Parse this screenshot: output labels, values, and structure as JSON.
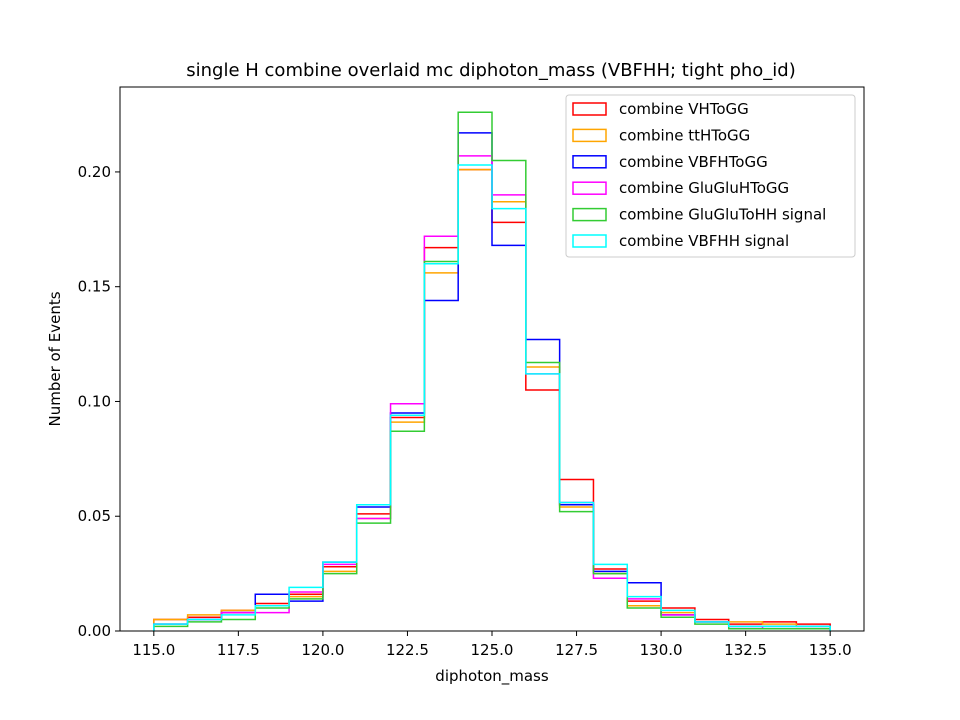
{
  "chart_data": {
    "type": "step-histogram",
    "title": "single H combine overlaid mc diphoton_mass (VBFHH; tight pho_id)",
    "xlabel": "diphoton_mass",
    "ylabel": "Number of Events",
    "xlim": [
      114,
      136
    ],
    "ylim": [
      0,
      0.237
    ],
    "bin_edges": [
      115,
      116,
      117,
      118,
      119,
      120,
      121,
      122,
      123,
      124,
      125,
      126,
      127,
      128,
      129,
      130,
      131,
      132,
      133,
      134,
      135
    ],
    "xticks": [
      {
        "value": 115,
        "label": "115.0"
      },
      {
        "value": 117.5,
        "label": "117.5"
      },
      {
        "value": 120,
        "label": "120.0"
      },
      {
        "value": 122.5,
        "label": "122.5"
      },
      {
        "value": 125,
        "label": "125.0"
      },
      {
        "value": 127.5,
        "label": "127.5"
      },
      {
        "value": 130,
        "label": "130.0"
      },
      {
        "value": 132.5,
        "label": "132.5"
      },
      {
        "value": 135,
        "label": "135.0"
      }
    ],
    "yticks": [
      {
        "value": 0,
        "label": "0.00"
      },
      {
        "value": 0.05,
        "label": "0.05"
      },
      {
        "value": 0.1,
        "label": "0.10"
      },
      {
        "value": 0.15,
        "label": "0.15"
      },
      {
        "value": 0.2,
        "label": "0.20"
      }
    ],
    "grid": false,
    "legend_position": "top-right",
    "series": [
      {
        "name": "combine VHToGG",
        "color": "#ff0000",
        "values": [
          0.005,
          0.006,
          0.009,
          0.012,
          0.016,
          0.028,
          0.051,
          0.093,
          0.167,
          0.201,
          0.178,
          0.105,
          0.066,
          0.027,
          0.013,
          0.01,
          0.005,
          0.003,
          0.004,
          0.003
        ]
      },
      {
        "name": "combine ttHToGG",
        "color": "#ffa500",
        "values": [
          0.005,
          0.007,
          0.009,
          0.011,
          0.015,
          0.026,
          0.049,
          0.091,
          0.156,
          0.201,
          0.187,
          0.115,
          0.054,
          0.025,
          0.011,
          0.008,
          0.004,
          0.004,
          0.003,
          0.002
        ]
      },
      {
        "name": "combine VBFHToGG",
        "color": "#0000ff",
        "values": [
          0.003,
          0.005,
          0.008,
          0.016,
          0.013,
          0.03,
          0.054,
          0.095,
          0.144,
          0.217,
          0.168,
          0.127,
          0.055,
          0.026,
          0.021,
          0.007,
          0.004,
          0.002,
          0.002,
          0.002
        ]
      },
      {
        "name": "combine GluGluHToGG",
        "color": "#ff00ff",
        "values": [
          0.003,
          0.005,
          0.008,
          0.008,
          0.017,
          0.029,
          0.049,
          0.099,
          0.172,
          0.207,
          0.19,
          0.112,
          0.056,
          0.023,
          0.014,
          0.007,
          0.004,
          0.002,
          0.001,
          0.001
        ]
      },
      {
        "name": "combine GluGluToHH signal",
        "color": "#33cc33",
        "values": [
          0.002,
          0.004,
          0.005,
          0.01,
          0.014,
          0.025,
          0.047,
          0.087,
          0.161,
          0.226,
          0.205,
          0.117,
          0.052,
          0.025,
          0.01,
          0.006,
          0.003,
          0.001,
          0.001,
          0.001
        ]
      },
      {
        "name": "combine VBFHH signal",
        "color": "#00ffff",
        "values": [
          0.003,
          0.005,
          0.007,
          0.011,
          0.019,
          0.03,
          0.055,
          0.094,
          0.16,
          0.203,
          0.184,
          0.112,
          0.056,
          0.029,
          0.015,
          0.009,
          0.004,
          0.002,
          0.002,
          0.002
        ]
      }
    ]
  }
}
